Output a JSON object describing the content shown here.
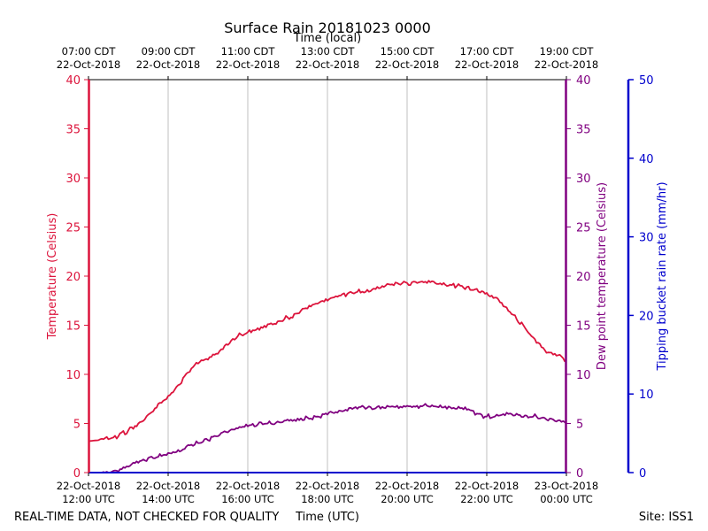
{
  "chart_data": {
    "type": "line",
    "title": "Surface Rain 20181023 0000",
    "top_axis_label": "Time (local)",
    "top_ticks": [
      {
        "hour_utc": 12,
        "line1": "07:00 CDT",
        "line2": "22-Oct-2018"
      },
      {
        "hour_utc": 14,
        "line1": "09:00 CDT",
        "line2": "22-Oct-2018"
      },
      {
        "hour_utc": 16,
        "line1": "11:00 CDT",
        "line2": "22-Oct-2018"
      },
      {
        "hour_utc": 18,
        "line1": "13:00 CDT",
        "line2": "22-Oct-2018"
      },
      {
        "hour_utc": 20,
        "line1": "15:00 CDT",
        "line2": "22-Oct-2018"
      },
      {
        "hour_utc": 22,
        "line1": "17:00 CDT",
        "line2": "22-Oct-2018"
      },
      {
        "hour_utc": 24,
        "line1": "19:00 CDT",
        "line2": "22-Oct-2018"
      }
    ],
    "bottom_axis_label": "Time (UTC)",
    "bottom_ticks": [
      {
        "hour_utc": 12,
        "line1": "22-Oct-2018",
        "line2": "12:00 UTC"
      },
      {
        "hour_utc": 14,
        "line1": "22-Oct-2018",
        "line2": "14:00 UTC"
      },
      {
        "hour_utc": 16,
        "line1": "22-Oct-2018",
        "line2": "16:00 UTC"
      },
      {
        "hour_utc": 18,
        "line1": "22-Oct-2018",
        "line2": "18:00 UTC"
      },
      {
        "hour_utc": 20,
        "line1": "22-Oct-2018",
        "line2": "20:00 UTC"
      },
      {
        "hour_utc": 22,
        "line1": "22-Oct-2018",
        "line2": "22:00 UTC"
      },
      {
        "hour_utc": 24,
        "line1": "23-Oct-2018",
        "line2": "00:00 UTC"
      }
    ],
    "xlim": [
      12,
      24
    ],
    "left_axis": {
      "label": "Temperature (Celsius)",
      "ylim": [
        0,
        40
      ],
      "ticks": [
        "0",
        "5",
        "10",
        "15",
        "20",
        "25",
        "30",
        "35",
        "40"
      ],
      "color": "#dc143c"
    },
    "right_axis": {
      "label": "Dew point temperature (Celsius)",
      "ylim": [
        0,
        40
      ],
      "ticks": [
        "0",
        "5",
        "10",
        "15",
        "20",
        "25",
        "30",
        "35",
        "40"
      ],
      "color": "#800080"
    },
    "rain_axis": {
      "label": "Tipping bucket rain rate (mm/hr)",
      "ylim": [
        0,
        50
      ],
      "ticks": [
        "0",
        "10",
        "20",
        "30",
        "40",
        "50"
      ],
      "color": "#0000cd"
    },
    "grid": "vertical",
    "series": [
      {
        "name": "Temperature",
        "axis": "left",
        "color": "#dc143c",
        "x": [
          12.0,
          12.25,
          12.5,
          12.75,
          13.0,
          13.25,
          13.5,
          13.75,
          14.0,
          14.25,
          14.5,
          14.75,
          15.0,
          15.25,
          15.5,
          15.75,
          16.0,
          16.25,
          16.5,
          16.75,
          17.0,
          17.25,
          17.5,
          17.75,
          18.0,
          18.25,
          18.5,
          18.75,
          19.0,
          19.25,
          19.5,
          19.75,
          20.0,
          20.25,
          20.5,
          20.75,
          21.0,
          21.25,
          21.5,
          21.75,
          22.0,
          22.25,
          22.5,
          22.75,
          23.0,
          23.25,
          23.5,
          23.75,
          24.0
        ],
        "values": [
          3.2,
          3.3,
          3.4,
          3.7,
          4.3,
          5.0,
          5.9,
          7.0,
          7.8,
          8.9,
          10.2,
          11.1,
          11.5,
          12.1,
          13.0,
          13.9,
          14.3,
          14.7,
          15.1,
          15.4,
          15.8,
          16.2,
          16.7,
          17.2,
          17.5,
          17.9,
          18.2,
          18.4,
          18.6,
          18.9,
          19.2,
          19.3,
          19.3,
          19.3,
          19.3,
          19.2,
          19.0,
          19.0,
          18.9,
          18.7,
          18.3,
          17.8,
          16.8,
          15.6,
          14.5,
          13.2,
          12.2,
          11.9,
          11.5
        ]
      },
      {
        "name": "Dew point",
        "axis": "right",
        "color": "#800080",
        "x": [
          12.0,
          12.25,
          12.5,
          12.75,
          13.0,
          13.25,
          13.5,
          13.75,
          14.0,
          14.25,
          14.5,
          14.75,
          15.0,
          15.25,
          15.5,
          15.75,
          16.0,
          16.25,
          16.5,
          16.75,
          17.0,
          17.25,
          17.5,
          17.75,
          18.0,
          18.25,
          18.5,
          18.75,
          19.0,
          19.25,
          19.5,
          19.75,
          20.0,
          20.25,
          20.5,
          20.75,
          21.0,
          21.25,
          21.5,
          21.75,
          22.0,
          22.25,
          22.5,
          22.75,
          23.0,
          23.25,
          23.5,
          23.75,
          24.0
        ],
        "values": [
          -0.3,
          -0.2,
          -0.1,
          0.1,
          0.6,
          1.0,
          1.5,
          1.6,
          2.0,
          2.3,
          2.8,
          3.0,
          3.3,
          3.7,
          4.1,
          4.5,
          4.7,
          4.9,
          5.0,
          5.2,
          5.4,
          5.5,
          5.6,
          5.7,
          5.9,
          6.1,
          6.3,
          6.5,
          6.6,
          6.7,
          6.8,
          6.8,
          6.8,
          6.8,
          6.8,
          6.7,
          6.5,
          6.5,
          6.4,
          6.0,
          5.7,
          5.9,
          6.1,
          6.0,
          5.8,
          5.7,
          5.4,
          5.2,
          5.0
        ]
      },
      {
        "name": "Rain rate",
        "axis": "rain",
        "color": "#0000cd",
        "x": [
          12,
          24
        ],
        "values": [
          0,
          0
        ]
      }
    ]
  },
  "footer": {
    "left_note": "REAL-TIME DATA, NOT CHECKED FOR QUALITY",
    "site": "Site: ISS1"
  }
}
